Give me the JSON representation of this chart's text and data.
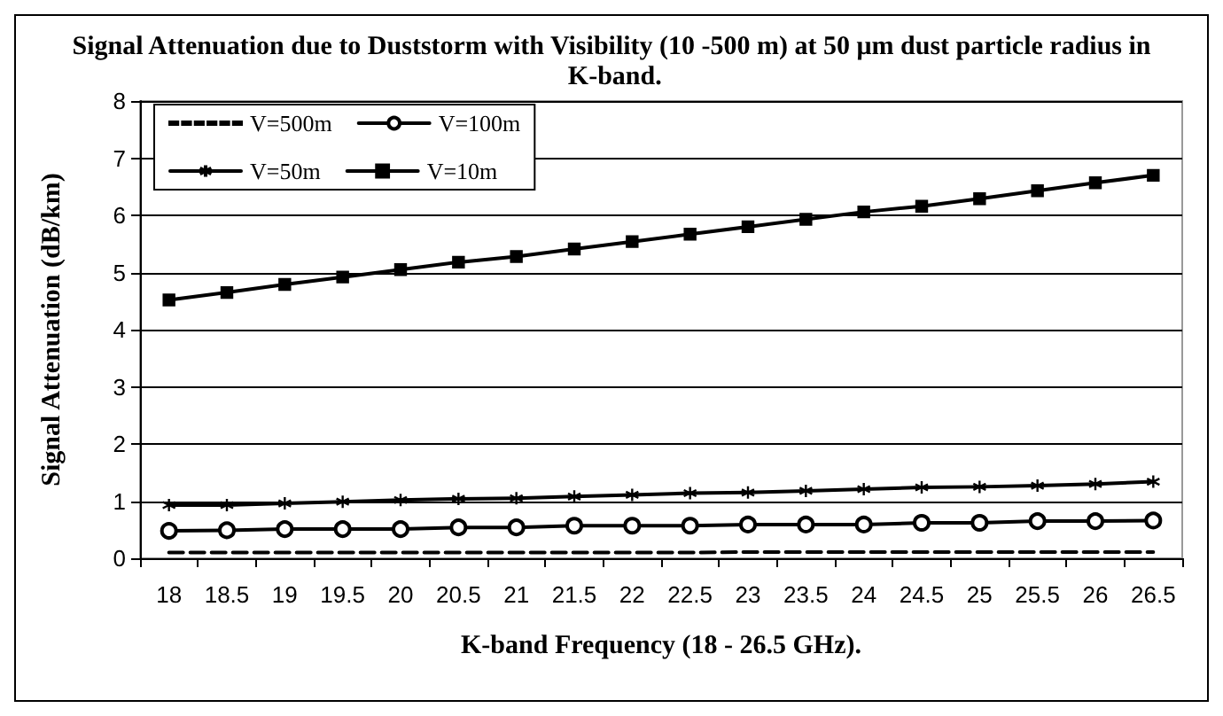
{
  "chart_data": {
    "type": "line",
    "title": "Signal Attenuation due to Duststorm with Visibility (10 -500 m) at 50 μm dust particle radius in K-band.",
    "xlabel": "K-band Frequency (18 - 26.5 GHz).",
    "ylabel": "Signal Attenuation (dB/km)",
    "categories": [
      "18",
      "18.5",
      "19",
      "19.5",
      "20",
      "20.5",
      "21",
      "21.5",
      "22",
      "22.5",
      "23",
      "23.5",
      "24",
      "24.5",
      "25",
      "25.5",
      "26",
      "26.5"
    ],
    "series": [
      {
        "name": "V=500m",
        "color": "#000000",
        "marker": "none",
        "line_style": "dashed",
        "values": [
          0.1,
          0.1,
          0.1,
          0.1,
          0.1,
          0.1,
          0.1,
          0.1,
          0.1,
          0.1,
          0.11,
          0.11,
          0.11,
          0.11,
          0.11,
          0.11,
          0.11,
          0.11
        ]
      },
      {
        "name": "V=100m",
        "color": "#000000",
        "marker": "circle",
        "line_style": "solid",
        "values": [
          0.48,
          0.49,
          0.51,
          0.51,
          0.51,
          0.54,
          0.54,
          0.57,
          0.57,
          0.57,
          0.59,
          0.59,
          0.59,
          0.62,
          0.62,
          0.65,
          0.65,
          0.66
        ]
      },
      {
        "name": "V=50m",
        "color": "#000000",
        "marker": "cross",
        "line_style": "solid",
        "values": [
          0.93,
          0.93,
          0.96,
          0.99,
          1.02,
          1.04,
          1.05,
          1.08,
          1.11,
          1.14,
          1.15,
          1.18,
          1.21,
          1.24,
          1.25,
          1.27,
          1.3,
          1.34
        ]
      },
      {
        "name": "V=10m",
        "color": "#000000",
        "marker": "square",
        "line_style": "solid",
        "values": [
          4.52,
          4.65,
          4.79,
          4.92,
          5.05,
          5.18,
          5.28,
          5.41,
          5.54,
          5.67,
          5.8,
          5.93,
          6.06,
          6.16,
          6.29,
          6.43,
          6.57,
          6.7
        ]
      }
    ],
    "ylim": [
      0,
      8
    ],
    "yticks": [
      0,
      1,
      2,
      3,
      4,
      5,
      6,
      7,
      8
    ],
    "grid": "y",
    "legend": "top left"
  }
}
